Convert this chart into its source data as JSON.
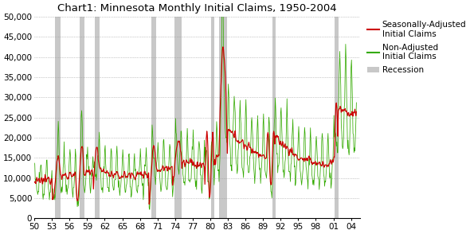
{
  "title": "Chart1: Minnesota Monthly Initial Claims, 1950-2004",
  "ylim": [
    0,
    50000
  ],
  "yticks": [
    0,
    5000,
    10000,
    15000,
    20000,
    25000,
    30000,
    35000,
    40000,
    45000,
    50000
  ],
  "ytick_labels": [
    "0",
    "5,000",
    "10,000",
    "15,000",
    "20,000",
    "25,000",
    "30,000",
    "35,000",
    "40,000",
    "45,000",
    "50,000"
  ],
  "xticks": [
    1950,
    1953,
    1956,
    1959,
    1962,
    1965,
    1968,
    1971,
    1974,
    1977,
    1980,
    1983,
    1986,
    1989,
    1992,
    1995,
    1998,
    2001,
    2004
  ],
  "xtick_labels": [
    "50",
    "53",
    "56",
    "59",
    "62",
    "65",
    "68",
    "71",
    "74",
    "77",
    "80",
    "83",
    "86",
    "89",
    "92",
    "95",
    "98",
    "01",
    "04"
  ],
  "recession_periods": [
    [
      1953.58,
      1954.5
    ],
    [
      1957.75,
      1958.5
    ],
    [
      1960.25,
      1961.08
    ],
    [
      1969.92,
      1970.83
    ],
    [
      1973.92,
      1975.17
    ],
    [
      1980.17,
      1980.67
    ],
    [
      1981.5,
      1982.92
    ],
    [
      1990.58,
      1991.08
    ],
    [
      2001.17,
      2001.83
    ]
  ],
  "recession_color": "#c8c8c8",
  "red_color": "#cc0000",
  "green_color": "#33aa00",
  "background_color": "#ffffff",
  "grid_color": "#999999",
  "title_fontsize": 9.5,
  "tick_fontsize": 7.5,
  "legend_fontsize": 7.5,
  "figwidth": 5.9,
  "figheight": 2.94,
  "dpi": 100
}
